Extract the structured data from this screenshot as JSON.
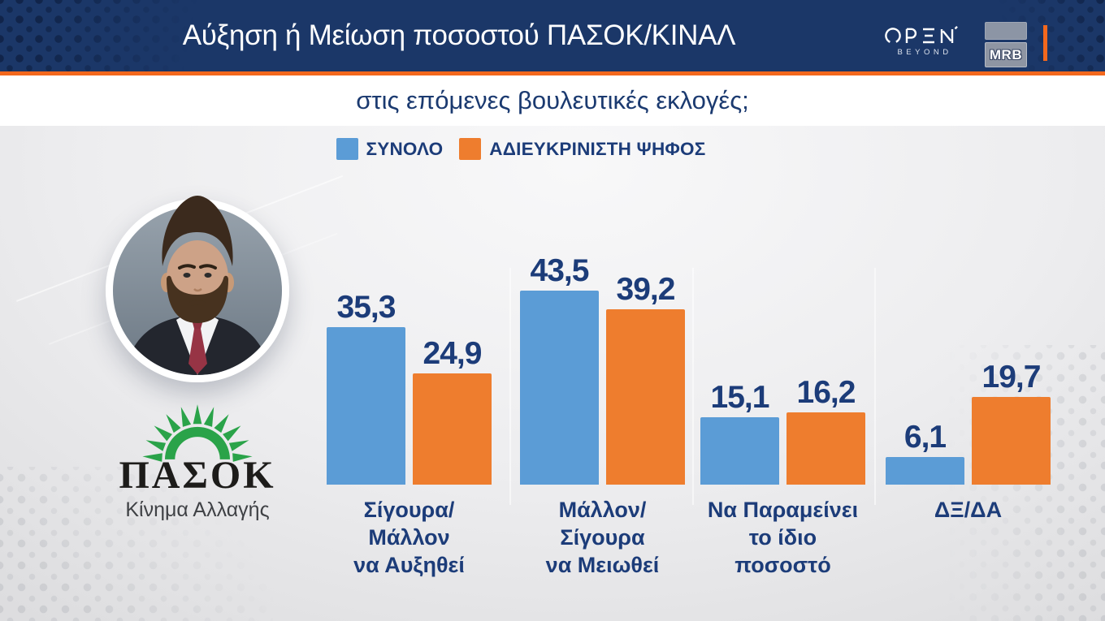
{
  "header": {
    "title": "Αύξηση ή Μείωση ποσοστού ΠΑΣΟΚ/ΚΙΝΑΛ",
    "subtitle": "στις επόμενες βουλευτικές εκλογές;",
    "open_logo": {
      "name": "OPEN",
      "tagline": "BEYOND"
    },
    "mrb_logo": {
      "name": "MRB"
    }
  },
  "party": {
    "name": "ΠΑΣΟΚ",
    "tagline": "Κίνημα Αλλαγής"
  },
  "colors": {
    "header_bg": "#1B3768",
    "accent_orange": "#F3681D",
    "bar_blue": "#5B9CD6",
    "bar_orange": "#EE7D2E",
    "text_navy": "#1C3C79",
    "pasok_green": "#2AA349"
  },
  "chart_data": {
    "type": "bar",
    "title": "Αύξηση ή Μείωση ποσοστού ΠΑΣΟΚ/ΚΙΝΑΛ στις επόμενες βουλευτικές εκλογές;",
    "categories": [
      "Σίγουρα/Μάλλον να Αυξηθεί",
      "Μάλλον/Σίγουρα να Μειωθεί",
      "Να Παραμείνει το ίδιο ποσοστό",
      "ΔΞ/ΔΑ"
    ],
    "categories_lines": [
      [
        "Σίγουρα/Μάλλον",
        "να Αυξηθεί"
      ],
      [
        "Μάλλον/Σίγουρα",
        "να Μειωθεί"
      ],
      [
        "Να Παραμείνει",
        "το ίδιο ποσοστό"
      ],
      [
        "ΔΞ/ΔΑ"
      ]
    ],
    "series": [
      {
        "name": "ΣΥΝΟΛΟ",
        "color": "#5B9CD6",
        "values": [
          35.3,
          43.5,
          15.1,
          6.1
        ]
      },
      {
        "name": "ΑΔΙΕΥΚΡΙΝΙΣΤΗ ΨΗΦΟΣ",
        "color": "#EE7D2E",
        "values": [
          24.9,
          39.2,
          16.2,
          19.7
        ]
      }
    ],
    "value_labels": [
      [
        "35,3",
        "43,5",
        "15,1",
        "6,1"
      ],
      [
        "24,9",
        "39,2",
        "16,2",
        "19,7"
      ]
    ],
    "unit": "%",
    "ylim": [
      0,
      50
    ],
    "grid": false,
    "legend_position": "top"
  }
}
